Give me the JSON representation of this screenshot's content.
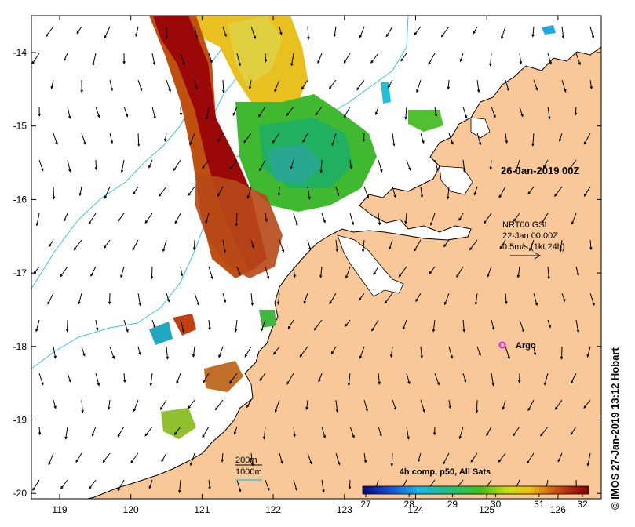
{
  "map": {
    "date_label": "26-Jan-2019 00Z",
    "wind_legend": {
      "line1": "NRT00 GSL",
      "line2": "22-Jan 00:00Z",
      "line3": "0.5m/s (1kt 24h)"
    },
    "argo_label": "Argo",
    "depth_legend": {
      "label_200": "200m",
      "label_1000": "1000m"
    },
    "colorbar": {
      "title": "4h comp, p50, All Sats",
      "ticks": [
        "27",
        "28",
        "29",
        "30",
        "31",
        "32"
      ],
      "min": 27,
      "max": 32
    },
    "lon_ticks": [
      "119",
      "120",
      "121",
      "122",
      "123",
      "124",
      "125",
      "126"
    ],
    "lat_ticks": [
      "-14",
      "-15",
      "-16",
      "-17",
      "-18",
      "-19",
      "-20"
    ],
    "credit": "© IMOS 27-Jan-2019 13:12 Hobart",
    "colors": {
      "land": "#f8c898",
      "ocean": "#ffffff",
      "isobath": "#33c6e0",
      "argo": "#e020e0"
    }
  }
}
